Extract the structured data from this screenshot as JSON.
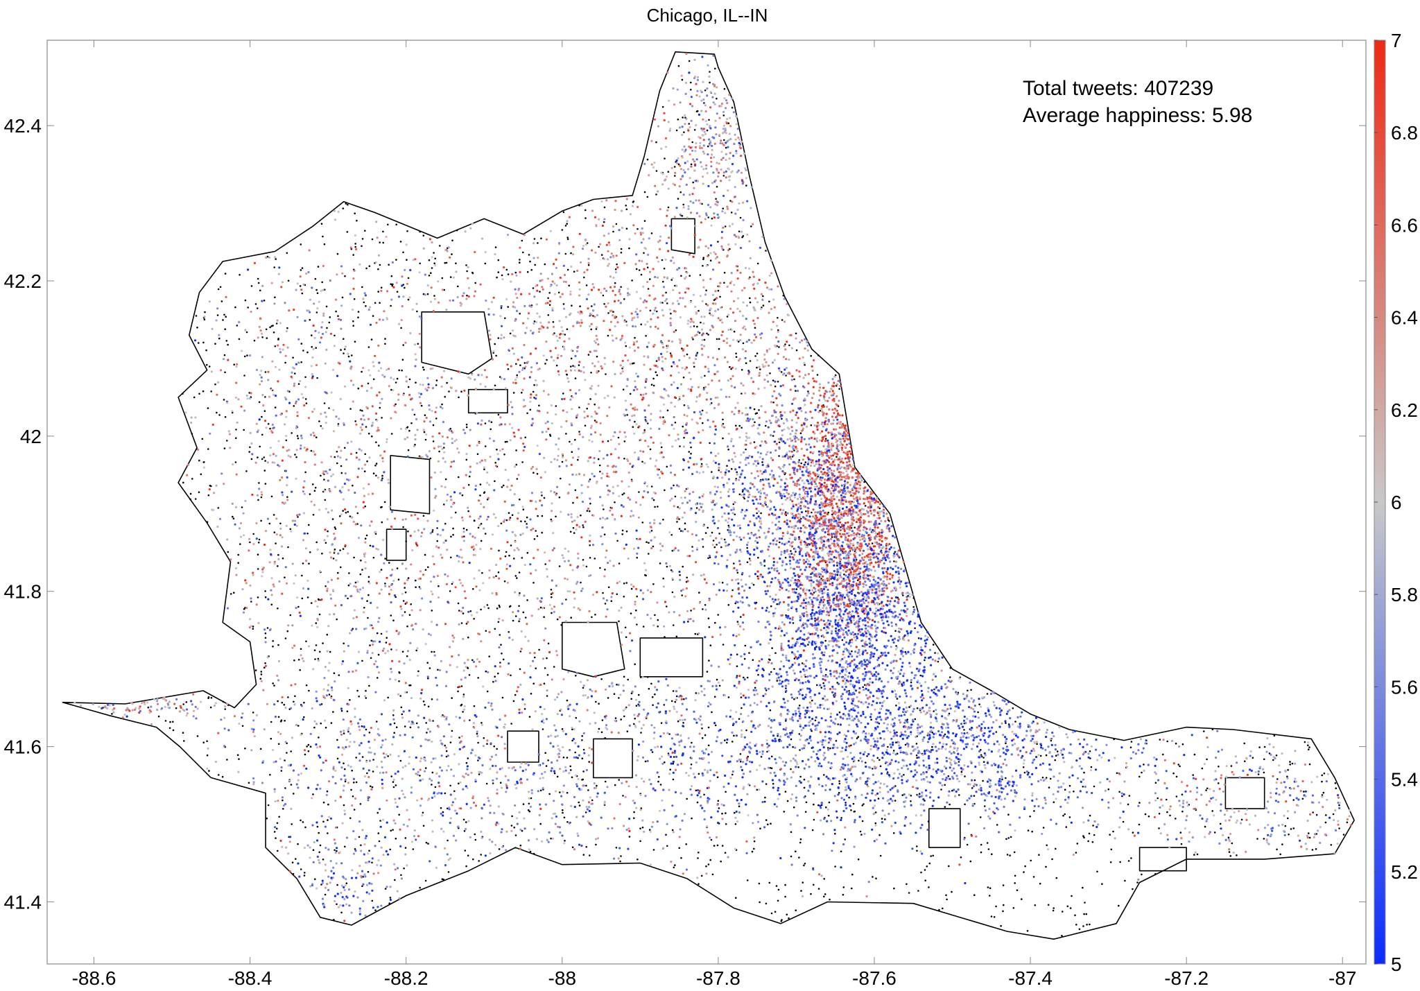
{
  "figure": {
    "title": "Chicago, IL--IN",
    "annotation": {
      "total_tweets_label": "Total tweets: 407239",
      "avg_happiness_label": "Average happiness: 5.98"
    }
  },
  "axes": {
    "xlim": [
      -88.66,
      -86.97
    ],
    "ylim": [
      41.32,
      42.51
    ],
    "xticks": [
      {
        "value": -88.6,
        "label": "-88.6"
      },
      {
        "value": -88.4,
        "label": "-88.4"
      },
      {
        "value": -88.2,
        "label": "-88.2"
      },
      {
        "value": -88.0,
        "label": "-88"
      },
      {
        "value": -87.8,
        "label": "-87.8"
      },
      {
        "value": -87.6,
        "label": "-87.6"
      },
      {
        "value": -87.4,
        "label": "-87.4"
      },
      {
        "value": -87.2,
        "label": "-87.2"
      },
      {
        "value": -87.0,
        "label": "-87"
      }
    ],
    "yticks": [
      {
        "value": 41.4,
        "label": "41.4"
      },
      {
        "value": 41.6,
        "label": "41.6"
      },
      {
        "value": 41.8,
        "label": "41.8"
      },
      {
        "value": 42.0,
        "label": "42"
      },
      {
        "value": 42.2,
        "label": "42.2"
      },
      {
        "value": 42.4,
        "label": "42.4"
      }
    ]
  },
  "colorbar": {
    "range": [
      5,
      7
    ],
    "colors": {
      "low": "#0a2cff",
      "mid": "#c8c8c8",
      "high": "#ee2a14"
    },
    "ticks": [
      {
        "value": 5.0,
        "label": "5"
      },
      {
        "value": 5.2,
        "label": "5.2"
      },
      {
        "value": 5.4,
        "label": "5.4"
      },
      {
        "value": 5.6,
        "label": "5.6"
      },
      {
        "value": 5.8,
        "label": "5.8"
      },
      {
        "value": 6.0,
        "label": "6"
      },
      {
        "value": 6.2,
        "label": "6.2"
      },
      {
        "value": 6.4,
        "label": "6.4"
      },
      {
        "value": 6.6,
        "label": "6.6"
      },
      {
        "value": 6.8,
        "label": "6.8"
      },
      {
        "value": 7.0,
        "label": "7"
      }
    ]
  },
  "map": {
    "boundary_color": "#000000",
    "neutral_point_color": "#000000",
    "outline": [
      [
        -88.64,
        41.657
      ],
      [
        -88.56,
        41.655
      ],
      [
        -88.46,
        41.672
      ],
      [
        -88.42,
        41.65
      ],
      [
        -88.392,
        41.68
      ],
      [
        -88.4,
        41.735
      ],
      [
        -88.435,
        41.76
      ],
      [
        -88.425,
        41.838
      ],
      [
        -88.455,
        41.888
      ],
      [
        -88.492,
        41.94
      ],
      [
        -88.468,
        41.985
      ],
      [
        -88.492,
        42.05
      ],
      [
        -88.455,
        42.085
      ],
      [
        -88.478,
        42.13
      ],
      [
        -88.465,
        42.185
      ],
      [
        -88.435,
        42.225
      ],
      [
        -88.368,
        42.238
      ],
      [
        -88.32,
        42.27
      ],
      [
        -88.28,
        42.302
      ],
      [
        -88.24,
        42.288
      ],
      [
        -88.16,
        42.255
      ],
      [
        -88.1,
        42.28
      ],
      [
        -88.05,
        42.26
      ],
      [
        -88.0,
        42.29
      ],
      [
        -87.96,
        42.305
      ],
      [
        -87.91,
        42.31
      ],
      [
        -87.895,
        42.36
      ],
      [
        -87.875,
        42.445
      ],
      [
        -87.855,
        42.495
      ],
      [
        -87.805,
        42.492
      ],
      [
        -87.8,
        42.475
      ],
      [
        -87.78,
        42.43
      ],
      [
        -87.76,
        42.335
      ],
      [
        -87.74,
        42.25
      ],
      [
        -87.715,
        42.18
      ],
      [
        -87.68,
        42.112
      ],
      [
        -87.645,
        42.08
      ],
      [
        -87.625,
        41.96
      ],
      [
        -87.58,
        41.9
      ],
      [
        -87.54,
        41.76
      ],
      [
        -87.5,
        41.7
      ],
      [
        -87.45,
        41.672
      ],
      [
        -87.4,
        41.642
      ],
      [
        -87.35,
        41.622
      ],
      [
        -87.28,
        41.608
      ],
      [
        -87.2,
        41.625
      ],
      [
        -87.14,
        41.622
      ],
      [
        -87.04,
        41.61
      ],
      [
        -87.01,
        41.56
      ],
      [
        -86.985,
        41.505
      ],
      [
        -87.01,
        41.462
      ],
      [
        -87.1,
        41.455
      ],
      [
        -87.2,
        41.455
      ],
      [
        -87.26,
        41.425
      ],
      [
        -87.29,
        41.372
      ],
      [
        -87.37,
        41.352
      ],
      [
        -87.43,
        41.362
      ],
      [
        -87.55,
        41.398
      ],
      [
        -87.66,
        41.4
      ],
      [
        -87.72,
        41.372
      ],
      [
        -87.78,
        41.392
      ],
      [
        -87.84,
        41.43
      ],
      [
        -87.9,
        41.45
      ],
      [
        -88.0,
        41.448
      ],
      [
        -88.06,
        41.47
      ],
      [
        -88.12,
        41.44
      ],
      [
        -88.2,
        41.408
      ],
      [
        -88.27,
        41.37
      ],
      [
        -88.31,
        41.38
      ],
      [
        -88.34,
        41.43
      ],
      [
        -88.38,
        41.47
      ],
      [
        -88.38,
        41.54
      ],
      [
        -88.45,
        41.56
      ],
      [
        -88.49,
        41.6
      ],
      [
        -88.52,
        41.625
      ],
      [
        -88.58,
        41.64
      ],
      [
        -88.64,
        41.657
      ]
    ],
    "holes": [
      [
        [
          -88.18,
          42.16
        ],
        [
          -88.1,
          42.16
        ],
        [
          -88.09,
          42.1
        ],
        [
          -88.12,
          42.08
        ],
        [
          -88.18,
          42.095
        ]
      ],
      [
        [
          -88.22,
          41.975
        ],
        [
          -88.17,
          41.97
        ],
        [
          -88.17,
          41.9
        ],
        [
          -88.22,
          41.905
        ]
      ],
      [
        [
          -88.225,
          41.88
        ],
        [
          -88.2,
          41.88
        ],
        [
          -88.2,
          41.84
        ],
        [
          -88.225,
          41.84
        ]
      ],
      [
        [
          -88.0,
          41.76
        ],
        [
          -87.93,
          41.76
        ],
        [
          -87.92,
          41.7
        ],
        [
          -87.96,
          41.69
        ],
        [
          -88.0,
          41.7
        ]
      ],
      [
        [
          -87.9,
          41.74
        ],
        [
          -87.82,
          41.74
        ],
        [
          -87.82,
          41.69
        ],
        [
          -87.9,
          41.69
        ]
      ],
      [
        [
          -88.07,
          41.62
        ],
        [
          -88.03,
          41.62
        ],
        [
          -88.03,
          41.58
        ],
        [
          -88.07,
          41.58
        ]
      ],
      [
        [
          -87.96,
          41.61
        ],
        [
          -87.91,
          41.61
        ],
        [
          -87.91,
          41.56
        ],
        [
          -87.96,
          41.56
        ]
      ],
      [
        [
          -87.86,
          42.28
        ],
        [
          -87.83,
          42.28
        ],
        [
          -87.83,
          42.235
        ],
        [
          -87.86,
          42.24
        ]
      ],
      [
        [
          -88.12,
          42.06
        ],
        [
          -88.07,
          42.06
        ],
        [
          -88.07,
          42.03
        ],
        [
          -88.12,
          42.03
        ]
      ],
      [
        [
          -87.53,
          41.52
        ],
        [
          -87.49,
          41.52
        ],
        [
          -87.49,
          41.47
        ],
        [
          -87.53,
          41.47
        ]
      ],
      [
        [
          -87.15,
          41.56
        ],
        [
          -87.1,
          41.56
        ],
        [
          -87.1,
          41.52
        ],
        [
          -87.15,
          41.52
        ]
      ],
      [
        [
          -87.26,
          41.47
        ],
        [
          -87.2,
          41.47
        ],
        [
          -87.2,
          41.44
        ],
        [
          -87.26,
          41.44
        ]
      ]
    ],
    "hotspots": [
      {
        "lon": -87.635,
        "lat": 41.905,
        "spread_lon": 0.04,
        "spread_lat": 0.09,
        "happiness": 6.65,
        "count": 1600
      },
      {
        "lon": -87.7,
        "lat": 41.925,
        "spread_lon": 0.08,
        "spread_lat": 0.07,
        "happiness": 5.55,
        "count": 900
      },
      {
        "lon": -87.63,
        "lat": 41.765,
        "spread_lon": 0.06,
        "spread_lat": 0.07,
        "happiness": 5.3,
        "count": 1300
      },
      {
        "lon": -87.62,
        "lat": 41.61,
        "spread_lon": 0.14,
        "spread_lat": 0.06,
        "happiness": 5.45,
        "count": 1200
      },
      {
        "lon": -87.45,
        "lat": 41.59,
        "spread_lon": 0.1,
        "spread_lat": 0.05,
        "happiness": 5.55,
        "count": 500
      },
      {
        "lon": -88.0,
        "lat": 41.9,
        "spread_lon": 0.22,
        "spread_lat": 0.2,
        "happiness": 6.1,
        "count": 1500
      },
      {
        "lon": -87.85,
        "lat": 42.15,
        "spread_lon": 0.18,
        "spread_lat": 0.09,
        "happiness": 6.25,
        "count": 900
      },
      {
        "lon": -88.3,
        "lat": 41.95,
        "spread_lon": 0.11,
        "spread_lat": 0.18,
        "happiness": 6.0,
        "count": 700
      },
      {
        "lon": -88.1,
        "lat": 41.56,
        "spread_lon": 0.18,
        "spread_lat": 0.06,
        "happiness": 5.7,
        "count": 700
      },
      {
        "lon": -87.8,
        "lat": 42.38,
        "spread_lon": 0.04,
        "spread_lat": 0.06,
        "happiness": 5.95,
        "count": 300
      },
      {
        "lon": -87.1,
        "lat": 41.53,
        "spread_lon": 0.08,
        "spread_lat": 0.04,
        "happiness": 5.9,
        "count": 250
      },
      {
        "lon": -88.28,
        "lat": 41.42,
        "spread_lon": 0.04,
        "spread_lat": 0.03,
        "happiness": 5.6,
        "count": 120
      },
      {
        "lon": -88.55,
        "lat": 41.655,
        "spread_lon": 0.06,
        "spread_lat": 0.01,
        "happiness": 6.1,
        "count": 80
      }
    ]
  }
}
